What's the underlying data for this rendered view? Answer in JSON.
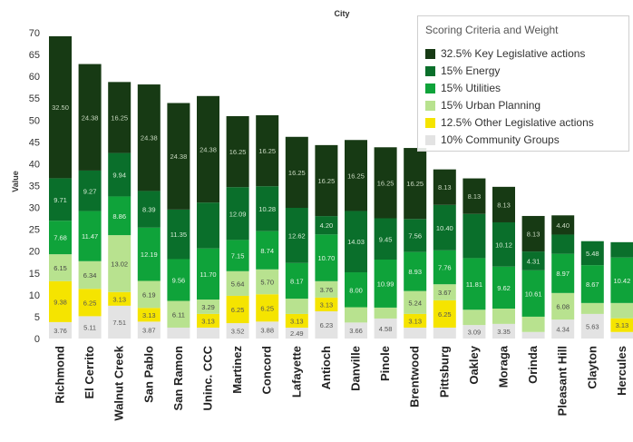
{
  "chart_data": {
    "type": "bar",
    "stacked": true,
    "title": "City",
    "ylabel": "Value",
    "xlabel": "",
    "ylim": [
      0,
      70
    ],
    "yticks": [
      0,
      5,
      10,
      15,
      20,
      25,
      30,
      35,
      40,
      45,
      50,
      55,
      60,
      65,
      70
    ],
    "legend_title": "Scoring Criteria and Weight",
    "legend_position": "top-right",
    "categories": [
      "Richmond",
      "El Cerrito",
      "Walnut Creek",
      "San Pablo",
      "San Ramon",
      "Uninc. CCC",
      "Martinez",
      "Concord",
      "Lafayette",
      "Antioch",
      "Danville",
      "Pinole",
      "Brentwood",
      "Pittsburg",
      "Oakley",
      "Moraga",
      "Orinda",
      "Pleasant Hill",
      "Clayton",
      "Hercules"
    ],
    "series": [
      {
        "name": "10% Community Groups",
        "color": "#e3e3e3",
        "text_color": "#555555",
        "values": [
          3.76,
          5.11,
          7.51,
          3.87,
          2.5,
          2.5,
          3.52,
          3.88,
          2.49,
          6.23,
          3.66,
          4.58,
          2.5,
          2.5,
          3.09,
          3.35,
          1.5,
          4.34,
          5.63,
          1.5
        ],
        "labels": [
          "3.76",
          "5.11",
          "7.51",
          "3.87",
          "",
          "",
          "3.52",
          "3.88",
          "2.49",
          "6.23",
          "3.66",
          "4.58",
          "",
          "",
          "3.09",
          "3.35",
          "",
          "4.34",
          "5.63",
          ""
        ]
      },
      {
        "name": "12.5% Other Legislative actions",
        "color": "#f5e400",
        "text_color": "#555555",
        "values": [
          9.38,
          6.25,
          3.13,
          3.13,
          0,
          3.13,
          6.25,
          6.25,
          3.13,
          3.13,
          0,
          0,
          3.13,
          6.25,
          0,
          0,
          0,
          0,
          0,
          3.13
        ],
        "labels": [
          "9.38",
          "6.25",
          "3.13",
          "3.13",
          "",
          "3.13",
          "6.25",
          "6.25",
          "3.13",
          "3.13",
          "",
          "",
          "3.13",
          "6.25",
          "",
          "",
          "",
          "",
          "",
          "3.13"
        ]
      },
      {
        "name": "15% Urban Planning",
        "color": "#b8e28f",
        "text_color": "#444444",
        "values": [
          6.15,
          6.34,
          13.02,
          6.19,
          6.11,
          3.29,
          5.64,
          5.7,
          3.5,
          3.76,
          3.5,
          2.5,
          5.24,
          3.67,
          3.5,
          3.5,
          3.5,
          6.08,
          2.5,
          3.5
        ],
        "labels": [
          "6.15",
          "6.34",
          "13.02",
          "6.19",
          "6.11",
          "3.29",
          "5.64",
          "5.70",
          "",
          "3.76",
          "",
          "",
          "5.24",
          "3.67",
          "",
          "",
          "",
          "6.08",
          "",
          ""
        ]
      },
      {
        "name": "15% Utilities",
        "color": "#0fa33a",
        "text_color": "#e8f5e8",
        "values": [
          7.68,
          11.47,
          8.86,
          12.19,
          9.56,
          11.7,
          7.15,
          8.74,
          8.17,
          10.7,
          8.0,
          10.99,
          8.93,
          7.76,
          11.81,
          9.62,
          10.61,
          8.97,
          8.67,
          10.42
        ],
        "labels": [
          "7.68",
          "11.47",
          "8.86",
          "12.19",
          "9.56",
          "11.70",
          "7.15",
          "8.74",
          "8.17",
          "10.70",
          "8.00",
          "10.99",
          "8.93",
          "7.76",
          "11.81",
          "9.62",
          "10.61",
          "8.97",
          "8.67",
          "10.42"
        ]
      },
      {
        "name": "15% Energy",
        "color": "#0a6f2b",
        "text_color": "#d6ecd6",
        "values": [
          9.71,
          9.27,
          9.94,
          8.39,
          11.35,
          10.5,
          12.09,
          10.28,
          12.62,
          4.2,
          14.03,
          9.45,
          7.56,
          10.4,
          10.12,
          10.12,
          4.31,
          4.4,
          5.48,
          3.5
        ],
        "labels": [
          "9.71",
          "9.27",
          "9.94",
          "8.39",
          "11.35",
          "",
          "12.09",
          "10.28",
          "12.62",
          "4.20",
          "14.03",
          "9.45",
          "7.56",
          "10.40",
          "",
          "10.12",
          "4.31",
          "",
          "5.48",
          ""
        ]
      },
      {
        "name": "32.5% Key Legislative actions",
        "color": "#173a14",
        "text_color": "#c8d8c0",
        "values": [
          32.5,
          24.38,
          16.25,
          24.38,
          24.38,
          24.38,
          16.25,
          16.25,
          16.25,
          16.25,
          16.25,
          16.25,
          16.25,
          8.13,
          8.13,
          8.13,
          8.13,
          4.4,
          0,
          0
        ],
        "labels": [
          "32.50",
          "24.38",
          "16.25",
          "24.38",
          "24.38",
          "24.38",
          "16.25",
          "16.25",
          "16.25",
          "16.25",
          "16.25",
          "16.25",
          "16.25",
          "8.13",
          "8.13",
          "8.13",
          "8.13",
          "4.40",
          "",
          ""
        ]
      }
    ]
  }
}
